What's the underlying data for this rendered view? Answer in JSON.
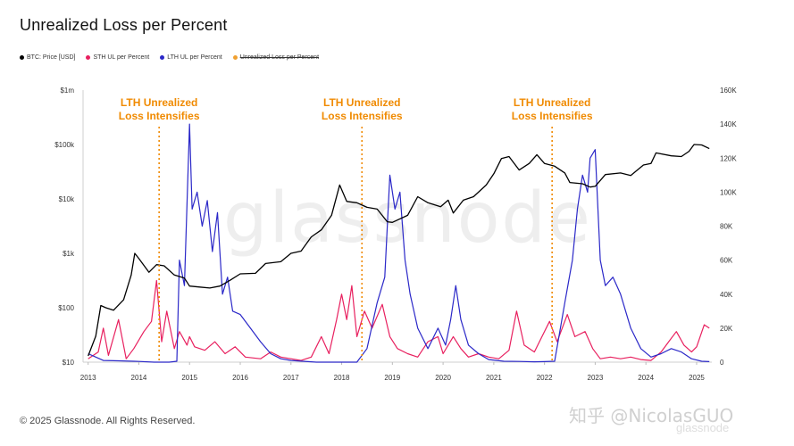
{
  "title": "Unrealized Loss per Percent",
  "legend": [
    {
      "label": "BTC: Price [USD]",
      "color": "#000000",
      "struck": false
    },
    {
      "label": "STH UL per Percent",
      "color": "#e8205f",
      "struck": false
    },
    {
      "label": "LTH UL per Percent",
      "color": "#2b28c8",
      "struck": false
    },
    {
      "label": "Unrealized Loss per Percent",
      "color": "#f0a030",
      "struck": true
    }
  ],
  "copyright": "© 2025 Glassnode. All Rights Reserved.",
  "watermark_zh": "知乎 @NicolasGUO",
  "watermark_bg": "glassnode",
  "watermark_br": "glassnode",
  "chart_data": {
    "type": "line",
    "title": "Unrealized Loss per Percent",
    "x_ticks": [
      "2013",
      "2014",
      "2015",
      "2016",
      "2017",
      "2018",
      "2019",
      "2020",
      "2021",
      "2022",
      "2023",
      "2024",
      "2025"
    ],
    "xlim": [
      2012.9,
      2025.3
    ],
    "y_left": {
      "scale": "log",
      "ticks": [
        "$10",
        "$100",
        "$1k",
        "$10k",
        "$100k",
        "$1m"
      ],
      "ylim": [
        10,
        1000000
      ]
    },
    "y_right": {
      "scale": "linear",
      "ticks": [
        "0",
        "20K",
        "40K",
        "60K",
        "80K",
        "100K",
        "120K",
        "140K",
        "160K"
      ],
      "ylim": [
        0,
        160000
      ]
    },
    "grid": false,
    "legend_position": "top-left",
    "annotations": [
      {
        "text_lines": [
          "LTH Unrealized",
          "Loss Intensifies"
        ],
        "x": 2014.4
      },
      {
        "text_lines": [
          "LTH Unrealized",
          "Loss Intensifies"
        ],
        "x": 2018.4
      },
      {
        "text_lines": [
          "LTH Unrealized",
          "Loss Intensifies"
        ],
        "x": 2022.15
      }
    ],
    "series": [
      {
        "name": "BTC: Price [USD]",
        "axis": "left",
        "color": "#000000",
        "points": [
          [
            2013.0,
            13
          ],
          [
            2013.15,
            30
          ],
          [
            2013.25,
            110
          ],
          [
            2013.35,
            100
          ],
          [
            2013.5,
            90
          ],
          [
            2013.7,
            140
          ],
          [
            2013.85,
            400
          ],
          [
            2013.92,
            1000
          ],
          [
            2014.0,
            800
          ],
          [
            2014.1,
            600
          ],
          [
            2014.2,
            450
          ],
          [
            2014.35,
            620
          ],
          [
            2014.5,
            590
          ],
          [
            2014.7,
            400
          ],
          [
            2014.9,
            350
          ],
          [
            2015.0,
            250
          ],
          [
            2015.2,
            240
          ],
          [
            2015.4,
            230
          ],
          [
            2015.6,
            250
          ],
          [
            2015.8,
            320
          ],
          [
            2016.0,
            420
          ],
          [
            2016.3,
            430
          ],
          [
            2016.5,
            650
          ],
          [
            2016.8,
            700
          ],
          [
            2017.0,
            1000
          ],
          [
            2017.2,
            1100
          ],
          [
            2017.4,
            2000
          ],
          [
            2017.6,
            2700
          ],
          [
            2017.8,
            5000
          ],
          [
            2017.96,
            18000
          ],
          [
            2018.1,
            9000
          ],
          [
            2018.3,
            8500
          ],
          [
            2018.5,
            7000
          ],
          [
            2018.7,
            6500
          ],
          [
            2018.9,
            3800
          ],
          [
            2019.0,
            3700
          ],
          [
            2019.3,
            5000
          ],
          [
            2019.5,
            11000
          ],
          [
            2019.7,
            8500
          ],
          [
            2019.95,
            7200
          ],
          [
            2020.1,
            9500
          ],
          [
            2020.2,
            5500
          ],
          [
            2020.4,
            9500
          ],
          [
            2020.6,
            11000
          ],
          [
            2020.85,
            18000
          ],
          [
            2021.0,
            29000
          ],
          [
            2021.15,
            55000
          ],
          [
            2021.3,
            60000
          ],
          [
            2021.5,
            34000
          ],
          [
            2021.7,
            45000
          ],
          [
            2021.85,
            65000
          ],
          [
            2022.0,
            45000
          ],
          [
            2022.2,
            40000
          ],
          [
            2022.4,
            30000
          ],
          [
            2022.5,
            20000
          ],
          [
            2022.75,
            19000
          ],
          [
            2022.9,
            16500
          ],
          [
            2023.0,
            17000
          ],
          [
            2023.2,
            28000
          ],
          [
            2023.5,
            30000
          ],
          [
            2023.7,
            27000
          ],
          [
            2023.95,
            42000
          ],
          [
            2024.1,
            45000
          ],
          [
            2024.2,
            70000
          ],
          [
            2024.5,
            62000
          ],
          [
            2024.7,
            60000
          ],
          [
            2024.85,
            75000
          ],
          [
            2024.95,
            100000
          ],
          [
            2025.1,
            98000
          ],
          [
            2025.25,
            84000
          ]
        ]
      },
      {
        "name": "STH UL per Percent",
        "axis": "right",
        "color": "#e8205f",
        "points": [
          [
            2013.0,
            2000
          ],
          [
            2013.2,
            6000
          ],
          [
            2013.3,
            20000
          ],
          [
            2013.4,
            4000
          ],
          [
            2013.6,
            25000
          ],
          [
            2013.75,
            2000
          ],
          [
            2013.9,
            8000
          ],
          [
            2014.1,
            18000
          ],
          [
            2014.25,
            24000
          ],
          [
            2014.35,
            48000
          ],
          [
            2014.45,
            12000
          ],
          [
            2014.55,
            30000
          ],
          [
            2014.7,
            8000
          ],
          [
            2014.8,
            18000
          ],
          [
            2014.95,
            10000
          ],
          [
            2015.0,
            15000
          ],
          [
            2015.1,
            9000
          ],
          [
            2015.3,
            7000
          ],
          [
            2015.5,
            12000
          ],
          [
            2015.7,
            5000
          ],
          [
            2015.9,
            9000
          ],
          [
            2016.1,
            3000
          ],
          [
            2016.4,
            2000
          ],
          [
            2016.6,
            6000
          ],
          [
            2016.8,
            3000
          ],
          [
            2017.0,
            2000
          ],
          [
            2017.2,
            1000
          ],
          [
            2017.4,
            3000
          ],
          [
            2017.6,
            15000
          ],
          [
            2017.75,
            5000
          ],
          [
            2017.9,
            25000
          ],
          [
            2018.0,
            40000
          ],
          [
            2018.1,
            25000
          ],
          [
            2018.2,
            45000
          ],
          [
            2018.3,
            15000
          ],
          [
            2018.45,
            30000
          ],
          [
            2018.6,
            20000
          ],
          [
            2018.8,
            34000
          ],
          [
            2018.95,
            15000
          ],
          [
            2019.1,
            8000
          ],
          [
            2019.3,
            5000
          ],
          [
            2019.5,
            3000
          ],
          [
            2019.7,
            12000
          ],
          [
            2019.9,
            15000
          ],
          [
            2020.0,
            5000
          ],
          [
            2020.2,
            15000
          ],
          [
            2020.35,
            8000
          ],
          [
            2020.5,
            3000
          ],
          [
            2020.7,
            5000
          ],
          [
            2020.9,
            3000
          ],
          [
            2021.1,
            2000
          ],
          [
            2021.3,
            7000
          ],
          [
            2021.45,
            30000
          ],
          [
            2021.6,
            10000
          ],
          [
            2021.8,
            6000
          ],
          [
            2021.95,
            15000
          ],
          [
            2022.1,
            24000
          ],
          [
            2022.25,
            12000
          ],
          [
            2022.45,
            28000
          ],
          [
            2022.6,
            15000
          ],
          [
            2022.8,
            18000
          ],
          [
            2022.95,
            8000
          ],
          [
            2023.1,
            2000
          ],
          [
            2023.3,
            3000
          ],
          [
            2023.5,
            2000
          ],
          [
            2023.7,
            3000
          ],
          [
            2023.9,
            1500
          ],
          [
            2024.1,
            1000
          ],
          [
            2024.3,
            6000
          ],
          [
            2024.45,
            12000
          ],
          [
            2024.6,
            18000
          ],
          [
            2024.75,
            10000
          ],
          [
            2024.9,
            6000
          ],
          [
            2025.0,
            9000
          ],
          [
            2025.15,
            22000
          ],
          [
            2025.25,
            20000
          ]
        ]
      },
      {
        "name": "LTH UL per Percent",
        "axis": "right",
        "color": "#2b28c8",
        "points": [
          [
            2013.0,
            5000
          ],
          [
            2013.15,
            3000
          ],
          [
            2013.3,
            1000
          ],
          [
            2013.6,
            800
          ],
          [
            2013.9,
            500
          ],
          [
            2014.0,
            400
          ],
          [
            2014.3,
            0
          ],
          [
            2014.6,
            0
          ],
          [
            2014.75,
            500
          ],
          [
            2014.8,
            60000
          ],
          [
            2014.9,
            45000
          ],
          [
            2015.0,
            140000
          ],
          [
            2015.05,
            90000
          ],
          [
            2015.15,
            100000
          ],
          [
            2015.25,
            80000
          ],
          [
            2015.35,
            95000
          ],
          [
            2015.45,
            65000
          ],
          [
            2015.55,
            88000
          ],
          [
            2015.65,
            40000
          ],
          [
            2015.75,
            50000
          ],
          [
            2015.85,
            30000
          ],
          [
            2016.0,
            28000
          ],
          [
            2016.2,
            20000
          ],
          [
            2016.4,
            12000
          ],
          [
            2016.6,
            5000
          ],
          [
            2016.8,
            2000
          ],
          [
            2017.0,
            1000
          ],
          [
            2017.5,
            0
          ],
          [
            2018.0,
            0
          ],
          [
            2018.3,
            0
          ],
          [
            2018.5,
            8000
          ],
          [
            2018.7,
            35000
          ],
          [
            2018.85,
            50000
          ],
          [
            2018.95,
            110000
          ],
          [
            2019.05,
            90000
          ],
          [
            2019.15,
            100000
          ],
          [
            2019.25,
            60000
          ],
          [
            2019.35,
            40000
          ],
          [
            2019.5,
            20000
          ],
          [
            2019.7,
            8000
          ],
          [
            2019.9,
            20000
          ],
          [
            2020.05,
            10000
          ],
          [
            2020.15,
            25000
          ],
          [
            2020.25,
            45000
          ],
          [
            2020.35,
            25000
          ],
          [
            2020.5,
            10000
          ],
          [
            2020.7,
            5000
          ],
          [
            2020.9,
            1500
          ],
          [
            2021.2,
            500
          ],
          [
            2021.5,
            400
          ],
          [
            2021.8,
            200
          ],
          [
            2022.0,
            300
          ],
          [
            2022.2,
            500
          ],
          [
            2022.4,
            35000
          ],
          [
            2022.55,
            60000
          ],
          [
            2022.65,
            90000
          ],
          [
            2022.75,
            110000
          ],
          [
            2022.85,
            100000
          ],
          [
            2022.9,
            120000
          ],
          [
            2023.0,
            125000
          ],
          [
            2023.1,
            60000
          ],
          [
            2023.2,
            45000
          ],
          [
            2023.35,
            50000
          ],
          [
            2023.5,
            40000
          ],
          [
            2023.7,
            20000
          ],
          [
            2023.9,
            8000
          ],
          [
            2024.1,
            3000
          ],
          [
            2024.3,
            5000
          ],
          [
            2024.5,
            8000
          ],
          [
            2024.7,
            6000
          ],
          [
            2024.9,
            2000
          ],
          [
            2025.1,
            500
          ],
          [
            2025.25,
            300
          ]
        ]
      }
    ]
  }
}
